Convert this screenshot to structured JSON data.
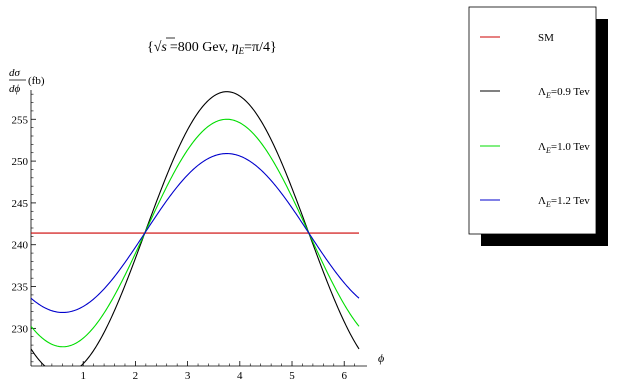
{
  "chart_data": {
    "type": "line",
    "title": "{√s =800 Gev, ηE=π/4}",
    "title_parts": {
      "brace_open": "{",
      "sqrt_arg": "s",
      "energy": "=800 Gev, ",
      "eta": "η",
      "eta_sub": "E",
      "eta_val": "=π/4",
      "brace_close": "}"
    },
    "ylabel": {
      "numerator": "dσ",
      "denominator": "dϕ",
      "unit": "(fb)"
    },
    "xlabel": "ϕ",
    "xlim": [
      0,
      6.2832
    ],
    "ylim": [
      225.5,
      258.5
    ],
    "x_ticks": [
      1,
      2,
      3,
      4,
      5,
      6
    ],
    "y_ticks": [
      230,
      235,
      240,
      245,
      250,
      255
    ],
    "grid": false,
    "legend_position": "right, outside plot area",
    "series": [
      {
        "name": "SM",
        "color": "#cc0000",
        "formula": "241.4 + 0·sin(ϕ − 2.18)",
        "mean": 241.4,
        "amplitude": 0,
        "phase": 2.18
      },
      {
        "name": "ΛE=0.9 Tev",
        "color": "#000000",
        "formula": "241.4 + 16.9·sin(ϕ − 2.18)",
        "mean": 241.4,
        "amplitude": 16.9,
        "phase": 2.18
      },
      {
        "name": "ΛE=1.0 Tev",
        "color": "#00dd00",
        "formula": "241.4 + 13.6·sin(ϕ − 2.18)",
        "mean": 241.4,
        "amplitude": 13.6,
        "phase": 2.18
      },
      {
        "name": "ΛE=1.2 Tev",
        "color": "#0000cc",
        "formula": "241.4 + 9.5·sin(ϕ − 2.18)",
        "mean": 241.4,
        "amplitude": 9.5,
        "phase": 2.18
      }
    ]
  },
  "legend": {
    "items": [
      {
        "label_main": "SM",
        "label_sub": "",
        "label_rest": ""
      },
      {
        "label_main": "Λ",
        "label_sub": "E",
        "label_rest": "=0.9 Tev"
      },
      {
        "label_main": "Λ",
        "label_sub": "E",
        "label_rest": "=1.0 Tev"
      },
      {
        "label_main": "Λ",
        "label_sub": "E",
        "label_rest": "=1.2 Tev"
      }
    ]
  }
}
